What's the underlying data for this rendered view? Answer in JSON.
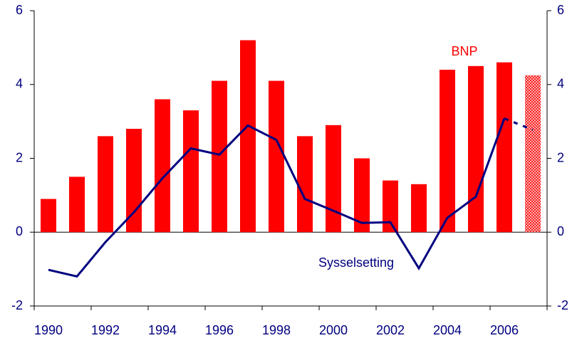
{
  "chart_data": {
    "type": "bar_line",
    "categories": [
      "1990",
      null,
      "1992",
      null,
      "1994",
      null,
      "1996",
      null,
      "1998",
      null,
      "2000",
      null,
      "2002",
      null,
      "2004",
      null,
      "2006",
      null
    ],
    "series": [
      {
        "name": "BNP",
        "type": "bar",
        "color": "#ff0000",
        "values": [
          0.9,
          1.5,
          2.6,
          2.8,
          3.6,
          3.3,
          4.1,
          5.2,
          4.1,
          2.6,
          2.9,
          2.0,
          1.4,
          1.3,
          4.4,
          4.5,
          4.6,
          4.25
        ]
      },
      {
        "name": "Sysselsetting",
        "type": "line",
        "color": "#000080",
        "values": [
          -1.02,
          -1.2,
          -0.27,
          0.54,
          1.46,
          2.27,
          2.1,
          2.89,
          2.5,
          0.9,
          0.58,
          0.25,
          0.27,
          -0.98,
          0.39,
          0.96,
          3.08,
          2.77
        ]
      }
    ],
    "last_point_projected": true,
    "ylim": [
      -2,
      6
    ],
    "yticks": [
      -2,
      0,
      2,
      4,
      6
    ],
    "y2lim": [
      -2,
      6
    ],
    "y2ticks": [
      -2,
      0,
      2,
      4,
      6
    ],
    "grid": false
  }
}
